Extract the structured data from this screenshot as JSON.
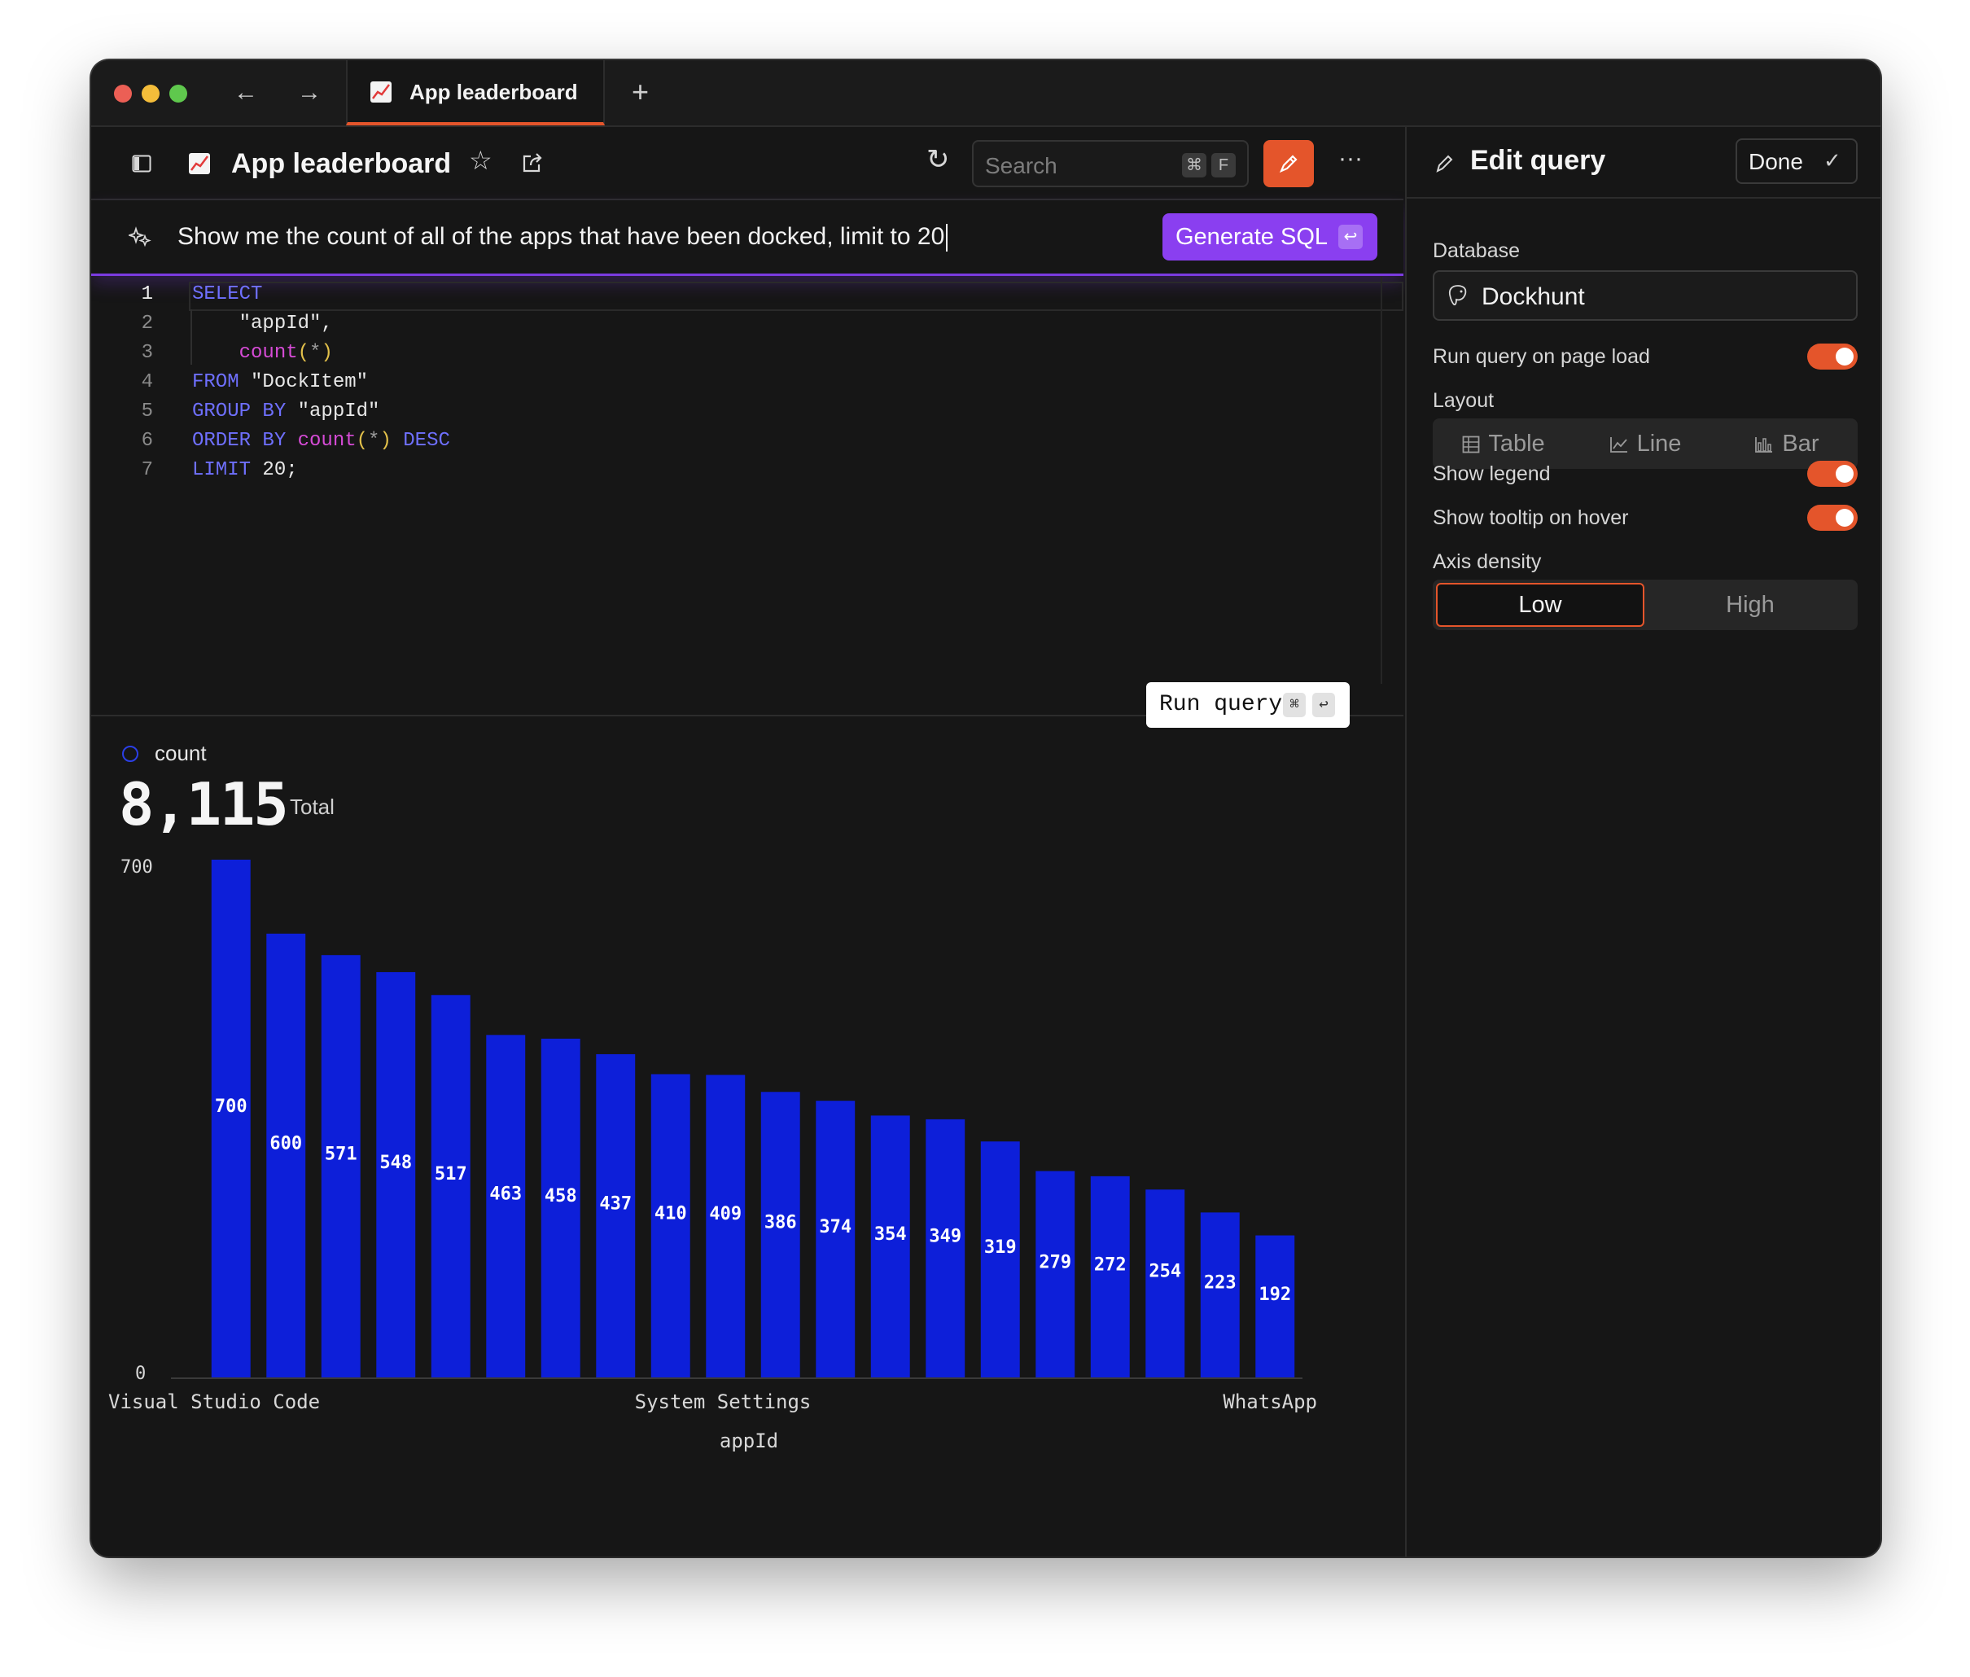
{
  "tab": {
    "title": "App leaderboard"
  },
  "header": {
    "title": "App leaderboard",
    "search_placeholder": "Search",
    "search_kbd_1": "⌘",
    "search_kbd_2": "F"
  },
  "prompt": {
    "text": "Show me the count of all of the apps that have been docked, limit to 20",
    "generate_label": "Generate SQL",
    "generate_kbd": "↩"
  },
  "editor": {
    "lines": [
      {
        "n": "1",
        "text": "SELECT"
      },
      {
        "n": "2",
        "text": "    \"appId\","
      },
      {
        "n": "3",
        "text": "    count(*)"
      },
      {
        "n": "4",
        "text": "FROM \"DockItem\""
      },
      {
        "n": "5",
        "text": "GROUP BY \"appId\""
      },
      {
        "n": "6",
        "text": "ORDER BY count(*) DESC"
      },
      {
        "n": "7",
        "text": "LIMIT 20;"
      }
    ],
    "run_label": "Run query",
    "run_kbd_1": "⌘",
    "run_kbd_2": "↩"
  },
  "result": {
    "legend_label": "count",
    "total_value": "8,115",
    "total_label": "Total"
  },
  "chart_data": {
    "type": "bar",
    "x_tick_labels": [
      "Visual Studio Code",
      "System Settings",
      "WhatsApp"
    ],
    "values": [
      700,
      600,
      571,
      548,
      517,
      463,
      458,
      437,
      410,
      409,
      386,
      374,
      354,
      349,
      319,
      279,
      272,
      254,
      223,
      192
    ],
    "xlabel": "appId",
    "ylabel": "",
    "ylim": [
      0,
      700
    ],
    "y_ticks": [
      "700",
      "0"
    ],
    "series": [
      {
        "name": "count",
        "color": "#0d1fd9"
      }
    ],
    "grid": false,
    "data_labels": true
  },
  "panel": {
    "title": "Edit query",
    "done_label": "Done",
    "database_label": "Database",
    "database_value": "Dockhunt",
    "run_on_load_label": "Run query on page load",
    "run_on_load": true,
    "layout_label": "Layout",
    "layout_options": [
      "Table",
      "Line",
      "Bar"
    ],
    "show_legend_label": "Show legend",
    "show_legend": true,
    "show_tooltip_label": "Show tooltip on hover",
    "show_tooltip": true,
    "axis_density_label": "Axis density",
    "axis_density_options": [
      "Low",
      "High"
    ],
    "axis_density_selected": "Low"
  },
  "colors": {
    "accent": "#e4552b",
    "purple": "#8a3ff0",
    "bar": "#0d1fd9",
    "background": "#161616"
  }
}
